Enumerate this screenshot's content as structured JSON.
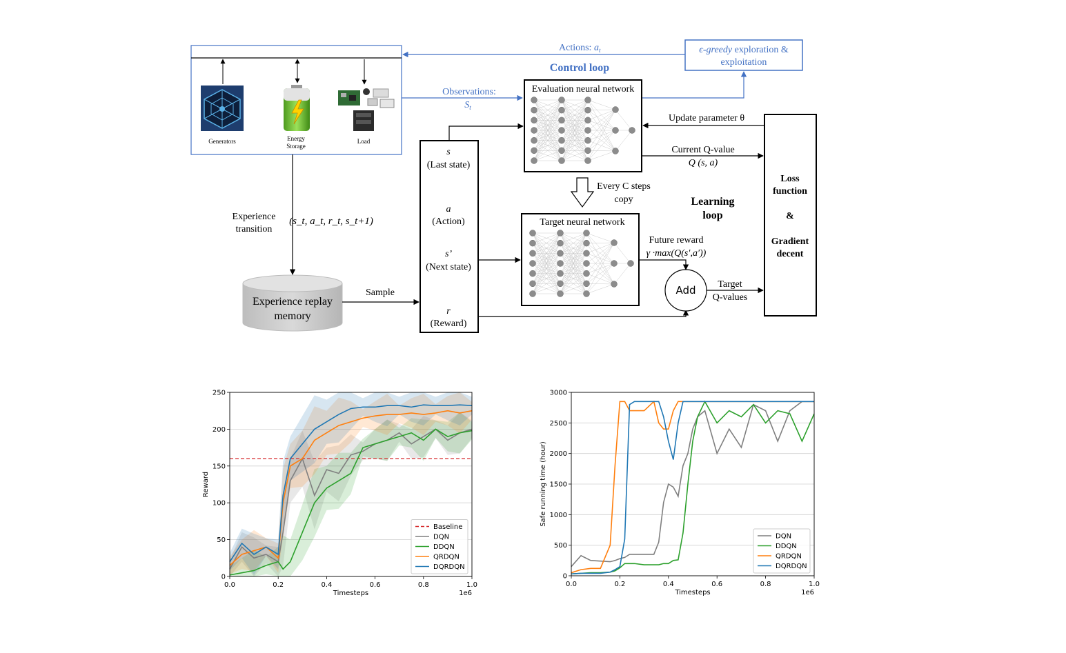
{
  "diagram": {
    "actions_label": "Actions: ",
    "actions_symbol": "a",
    "actions_sub": "t",
    "control_loop": "Control loop",
    "egreedy_line1_a": "ϵ-greedy",
    "egreedy_line1_b": " exploration &",
    "egreedy_line2": "exploitation",
    "observations_label": "Observations:",
    "observations_symbol": "S",
    "observations_sub": "t",
    "eval_nn": "Evaluation neural network",
    "target_nn": "Target neural network",
    "update_param": "Update parameter θ",
    "current_q": "Current Q-value",
    "q_sa": "Q (s, a)",
    "every_c_line1": "Every C steps",
    "every_c_line2": "copy",
    "learning_loop_line1": "Learning",
    "learning_loop_line2": "loop",
    "future_reward": "Future reward",
    "future_formula": "γ ·max(Q(s′,a′))",
    "add": "Add",
    "target_q_line1": "Target",
    "target_q_line2": "Q-values",
    "loss_line1": "Loss",
    "loss_line2": "function",
    "loss_amp": "&",
    "loss_line3": "Gradient",
    "loss_line4": "decent",
    "state_s": "s",
    "state_s_label": "(Last state)",
    "state_a": "a",
    "state_a_label": "(Action)",
    "state_sp": "s’",
    "state_sp_label": "(Next state)",
    "state_r": "r",
    "state_r_label": "(Reward)",
    "experience_transition_line1": "Experience",
    "experience_transition_line2": "transition",
    "transition_tuple": "(s_t, a_t, r_t, s_t+1)",
    "sample": "Sample",
    "replay_line1": "Experience replay",
    "replay_line2": "memory",
    "generators": "Generators",
    "energy_storage_line1": "Energy",
    "energy_storage_line2": "Storage",
    "load": "Load",
    "colors": {
      "accent_blue": "#4472c4",
      "box_black": "#000000"
    }
  },
  "chart_data": [
    {
      "type": "line",
      "xlabel": "Timesteps",
      "ylabel": "Reward",
      "x_offset_label": "1e6",
      "xlim": [
        0,
        1.0
      ],
      "ylim": [
        0,
        250
      ],
      "xticks": [
        "0.0",
        "0.2",
        "0.4",
        "0.6",
        "0.8",
        "1.0"
      ],
      "yticks": [
        "0",
        "50",
        "100",
        "150",
        "200",
        "250"
      ],
      "grid": "horizontal",
      "legend_position": "lower-right",
      "baseline": {
        "name": "Baseline",
        "value": 160,
        "color": "#d62728"
      },
      "x": [
        0.0,
        0.05,
        0.1,
        0.15,
        0.2,
        0.22,
        0.25,
        0.3,
        0.35,
        0.4,
        0.45,
        0.5,
        0.55,
        0.6,
        0.65,
        0.7,
        0.75,
        0.8,
        0.85,
        0.9,
        0.95,
        1.0
      ],
      "series": [
        {
          "name": "DQN",
          "color": "#7f7f7f",
          "values": [
            10,
            40,
            25,
            30,
            20,
            60,
            130,
            160,
            110,
            145,
            140,
            165,
            170,
            180,
            185,
            195,
            180,
            190,
            200,
            185,
            195,
            200
          ]
        },
        {
          "name": "DDQN",
          "color": "#2ca02c",
          "values": [
            2,
            5,
            8,
            15,
            20,
            10,
            20,
            60,
            100,
            120,
            130,
            140,
            175,
            180,
            185,
            190,
            195,
            185,
            200,
            190,
            195,
            198
          ]
        },
        {
          "name": "QRDQN",
          "color": "#ff7f0e",
          "values": [
            15,
            30,
            35,
            40,
            25,
            100,
            150,
            160,
            185,
            195,
            205,
            210,
            215,
            218,
            220,
            220,
            222,
            220,
            222,
            225,
            222,
            225
          ]
        },
        {
          "name": "DQRDQN",
          "color": "#1f77b4",
          "values": [
            20,
            45,
            30,
            40,
            30,
            110,
            160,
            180,
            200,
            210,
            220,
            228,
            230,
            230,
            232,
            232,
            230,
            233,
            232,
            232,
            233,
            232
          ]
        }
      ]
    },
    {
      "type": "line",
      "xlabel": "Timesteps",
      "ylabel": "Safe running time (hour)",
      "x_offset_label": "1e6",
      "xlim": [
        0,
        1.0
      ],
      "ylim": [
        0,
        3000
      ],
      "xticks": [
        "0.0",
        "0.2",
        "0.4",
        "0.6",
        "0.8",
        "1.0"
      ],
      "yticks": [
        "0",
        "500",
        "1000",
        "1500",
        "2000",
        "2500",
        "3000"
      ],
      "grid": "horizontal",
      "legend_position": "lower-right",
      "x": [
        0.0,
        0.04,
        0.08,
        0.12,
        0.16,
        0.18,
        0.2,
        0.22,
        0.24,
        0.26,
        0.3,
        0.34,
        0.36,
        0.38,
        0.4,
        0.42,
        0.44,
        0.46,
        0.48,
        0.5,
        0.52,
        0.55,
        0.6,
        0.65,
        0.7,
        0.75,
        0.8,
        0.85,
        0.9,
        0.95,
        1.0
      ],
      "series": [
        {
          "name": "DQN",
          "color": "#7f7f7f",
          "values": [
            150,
            330,
            250,
            240,
            230,
            250,
            280,
            300,
            350,
            350,
            350,
            350,
            550,
            1200,
            1500,
            1450,
            1300,
            1800,
            2000,
            2400,
            2600,
            2700,
            2000,
            2400,
            2100,
            2800,
            2700,
            2200,
            2700,
            2850,
            2850
          ]
        },
        {
          "name": "DDQN",
          "color": "#2ca02c",
          "values": [
            30,
            40,
            50,
            50,
            60,
            80,
            130,
            200,
            200,
            200,
            180,
            180,
            180,
            200,
            200,
            250,
            260,
            700,
            1500,
            2200,
            2600,
            2850,
            2500,
            2700,
            2600,
            2800,
            2500,
            2700,
            2650,
            2200,
            2650
          ]
        },
        {
          "name": "QRDQN",
          "color": "#ff7f0e",
          "values": [
            50,
            100,
            120,
            120,
            500,
            1800,
            2850,
            2850,
            2700,
            2700,
            2700,
            2850,
            2500,
            2400,
            2400,
            2700,
            2850,
            2850,
            2850,
            2850,
            2850,
            2850,
            2850,
            2850,
            2850,
            2850,
            2850,
            2850,
            2850,
            2850,
            2850
          ]
        },
        {
          "name": "DQRDQN",
          "color": "#1f77b4",
          "values": [
            30,
            40,
            40,
            40,
            60,
            100,
            150,
            600,
            2800,
            2850,
            2850,
            2850,
            2850,
            2600,
            2200,
            1900,
            2500,
            2850,
            2850,
            2850,
            2850,
            2850,
            2850,
            2850,
            2850,
            2850,
            2850,
            2850,
            2850,
            2850,
            2850
          ]
        }
      ]
    }
  ]
}
